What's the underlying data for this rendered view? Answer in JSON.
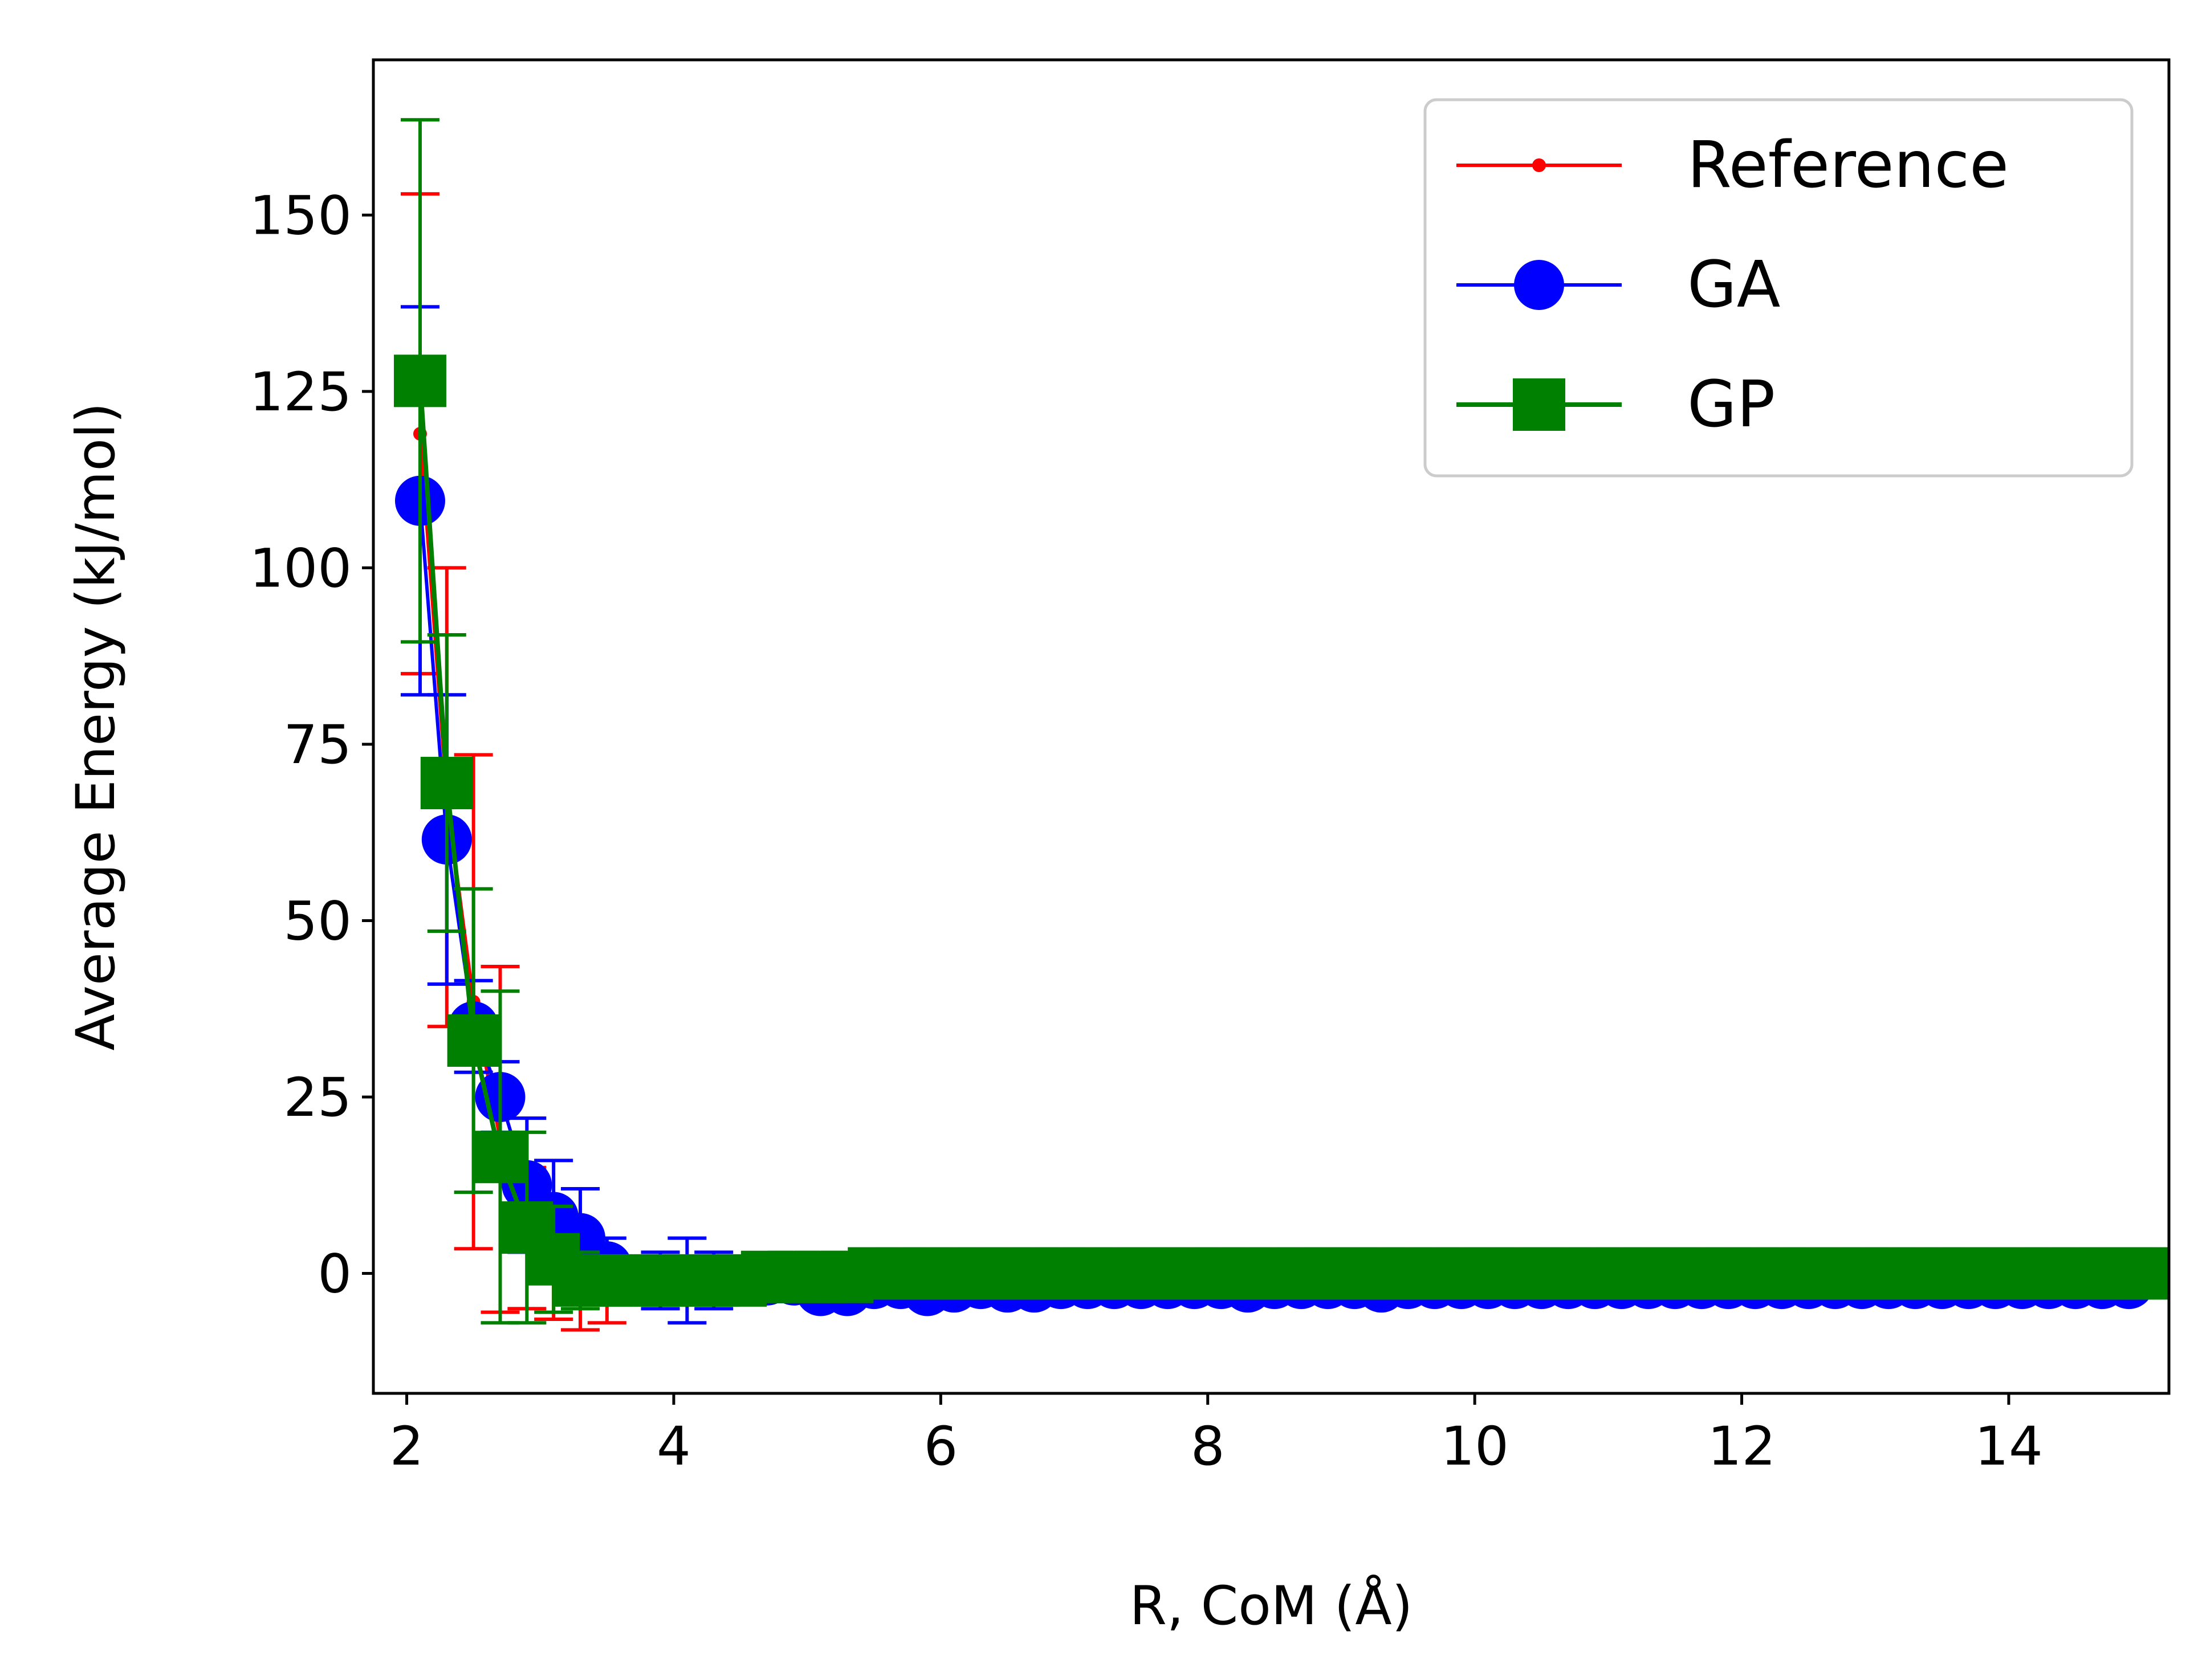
{
  "chart_data": {
    "type": "line",
    "title": "",
    "xlabel": "R, CoM (Å)",
    "ylabel": "Average Energy (kJ/mol)",
    "xlim": [
      1.75,
      15.2
    ],
    "ylim": [
      -17,
      172
    ],
    "xticks": [
      2,
      4,
      6,
      8,
      10,
      12,
      14
    ],
    "xtick_labels": [
      "2",
      "4",
      "6",
      "8",
      "10",
      "12",
      "14"
    ],
    "yticks": [
      0,
      25,
      50,
      75,
      100,
      125,
      150
    ],
    "ytick_labels": [
      "0",
      "25",
      "50",
      "75",
      "100",
      "125",
      "150"
    ],
    "grid": false,
    "legend_position": "top-right",
    "series": [
      {
        "name": "Reference",
        "color": "#ff0000",
        "marker": "point",
        "x": [
          2.1,
          2.3,
          2.5,
          2.7,
          2.9,
          3.1,
          3.3,
          3.5,
          3.7,
          3.9,
          4.1,
          4.3,
          4.5,
          4.7,
          4.9,
          5.1,
          5.3,
          5.5,
          5.7,
          5.9,
          6.1,
          6.3,
          6.5,
          6.7,
          6.9,
          7.1,
          7.3,
          7.5,
          7.7,
          7.9,
          8.1,
          8.3,
          8.5,
          8.7,
          8.9,
          9.1,
          9.3,
          9.5,
          9.7,
          9.9,
          10.1,
          10.3,
          10.5,
          10.7,
          10.9,
          11.1,
          11.3,
          11.5,
          11.7,
          11.9,
          12.1,
          12.3,
          12.5,
          12.7,
          12.9,
          13.1,
          13.3,
          13.5,
          13.7,
          13.9,
          14.1,
          14.3,
          14.5,
          14.7,
          14.9
        ],
        "y": [
          119,
          67.5,
          38.5,
          19,
          5,
          1.5,
          -2,
          -2,
          -1,
          -1,
          -1,
          -1,
          -1,
          -1,
          -1,
          -1,
          -1,
          -1,
          -1,
          -1,
          -1,
          -1,
          -1,
          -1,
          -1,
          -1,
          -1,
          -1,
          -1,
          -1,
          -1,
          -1,
          -1,
          -1,
          -1,
          -1,
          -1,
          -1,
          -1,
          -1,
          -1,
          -1,
          -1,
          -1,
          -1,
          -1,
          -1,
          -1,
          -1,
          -1,
          -1,
          -1,
          -1,
          -1,
          -1,
          -1,
          -1,
          -1,
          -1,
          -1,
          -1,
          -1,
          -1,
          -1,
          -1
        ],
        "err": [
          34,
          32.5,
          35,
          24.5,
          10,
          8,
          6,
          5,
          3,
          2,
          2,
          1,
          1,
          1,
          1,
          1,
          1,
          1,
          1,
          1,
          1,
          1,
          1,
          1,
          1,
          1,
          1,
          1,
          1,
          1,
          1,
          1,
          1,
          1,
          1,
          1,
          1,
          1,
          1,
          1,
          1,
          1,
          1,
          1,
          1,
          1,
          1,
          1,
          1,
          1,
          1,
          1,
          1,
          1,
          1,
          1,
          1,
          1,
          1,
          1,
          1,
          1,
          1,
          1,
          1
        ]
      },
      {
        "name": "GA",
        "color": "#0000ff",
        "marker": "circle",
        "x": [
          2.1,
          2.3,
          2.5,
          2.7,
          2.9,
          3.1,
          3.3,
          3.5,
          3.7,
          3.9,
          4.1,
          4.3,
          4.5,
          4.7,
          4.9,
          5.1,
          5.3,
          5.5,
          5.7,
          5.9,
          6.1,
          6.3,
          6.5,
          6.7,
          6.9,
          7.1,
          7.3,
          7.5,
          7.7,
          7.9,
          8.1,
          8.3,
          8.5,
          8.7,
          8.9,
          9.1,
          9.3,
          9.5,
          9.7,
          9.9,
          10.1,
          10.3,
          10.5,
          10.7,
          10.9,
          11.1,
          11.3,
          11.5,
          11.7,
          11.9,
          12.1,
          12.3,
          12.5,
          12.7,
          12.9,
          13.1,
          13.3,
          13.5,
          13.7,
          13.9,
          14.1,
          14.3,
          14.5,
          14.7,
          14.9
        ],
        "y": [
          109.5,
          61.5,
          35,
          25,
          12.5,
          8,
          5,
          1,
          -1,
          -1,
          -1,
          -1,
          -1,
          -1,
          -1,
          -2.5,
          -2.5,
          -1.5,
          -1.5,
          -2.5,
          -2,
          -1.5,
          -2,
          -2,
          -1.5,
          -1.5,
          -1.5,
          -1.5,
          -1.5,
          -1.5,
          -1.5,
          -2,
          -1.5,
          -1.5,
          -1.5,
          -1.5,
          -2,
          -1.5,
          -1.5,
          -1.5,
          -1.5,
          -1.5,
          -1.5,
          -1.5,
          -1.5,
          -1.5,
          -1.5,
          -1.5,
          -1.5,
          -1.5,
          -1.5,
          -1.5,
          -1.5,
          -1.5,
          -1.5,
          -1.5,
          -1.5,
          -1.5,
          -1.5,
          -1.5,
          -1.5,
          -1.5,
          -1.5,
          -1.5,
          -1.5
        ],
        "err": [
          27.5,
          20.5,
          6.5,
          5,
          9.5,
          8,
          7,
          4,
          3,
          4,
          6,
          4,
          2,
          3,
          2,
          1,
          1,
          1,
          1,
          1,
          1,
          1,
          1,
          1,
          1,
          1,
          1,
          1,
          1,
          1,
          1,
          1,
          1,
          1,
          1,
          1,
          1,
          1,
          1,
          1,
          1,
          1,
          1,
          1,
          1,
          1,
          1,
          1,
          1,
          1,
          1,
          1,
          1,
          1,
          1,
          1,
          1,
          1,
          1,
          1,
          1,
          1,
          1,
          1,
          1
        ]
      },
      {
        "name": "GP",
        "color": "#008000",
        "marker": "square",
        "x": [
          2.1,
          2.3,
          2.5,
          2.7,
          2.9,
          3.1,
          3.3,
          3.5,
          3.7,
          3.9,
          4.1,
          4.3,
          4.5,
          4.7,
          4.9,
          5.1,
          5.3,
          5.5,
          5.7,
          5.9,
          6.1,
          6.3,
          6.5,
          6.7,
          6.9,
          7.1,
          7.3,
          7.5,
          7.7,
          7.9,
          8.1,
          8.3,
          8.5,
          8.7,
          8.9,
          9.1,
          9.3,
          9.5,
          9.7,
          9.9,
          10.1,
          10.3,
          10.5,
          10.7,
          10.9,
          11.1,
          11.3,
          11.5,
          11.7,
          11.9,
          12.1,
          12.3,
          12.5,
          12.7,
          12.9,
          13.1,
          13.3,
          13.5,
          13.7,
          13.9,
          14.1,
          14.3,
          14.5,
          14.7,
          14.9,
          15.0
        ],
        "y": [
          126.5,
          69.5,
          33,
          16.5,
          6.5,
          2,
          -1,
          -1,
          -1,
          -1,
          -1,
          -1,
          -1,
          -0.5,
          -0.5,
          -0.5,
          -0.5,
          0,
          0,
          0,
          0,
          0,
          0,
          0,
          0,
          0,
          0,
          0,
          0,
          0,
          0,
          0,
          0,
          0,
          0,
          0,
          0,
          0,
          0,
          0,
          0,
          0,
          0,
          0,
          0,
          0,
          0,
          0,
          0,
          0,
          0,
          0,
          0,
          0,
          0,
          0,
          0,
          0,
          0,
          0,
          0,
          0,
          0,
          0,
          0,
          0
        ],
        "err": [
          37,
          21,
          21.5,
          23.5,
          13.5,
          7.5,
          4,
          3,
          2,
          2,
          1,
          1,
          1,
          1,
          1,
          1,
          1,
          1,
          1,
          1,
          1,
          1,
          1,
          1,
          1,
          1,
          1,
          1,
          1,
          1,
          1,
          1,
          1,
          1,
          1,
          1,
          1,
          1,
          1,
          1,
          1,
          1,
          1,
          1,
          1,
          1,
          1,
          1,
          1,
          1,
          1,
          1,
          1,
          1,
          1,
          1,
          1,
          1,
          1,
          1,
          1,
          1,
          1,
          1,
          1,
          1
        ]
      }
    ]
  }
}
